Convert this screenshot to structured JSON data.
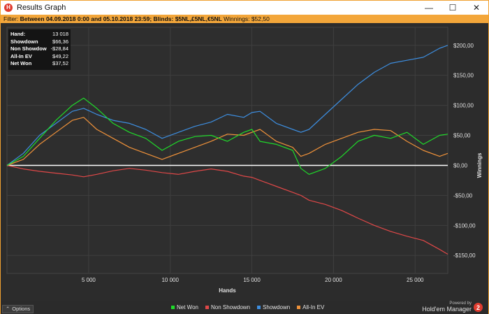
{
  "window": {
    "title": "Results Graph",
    "minimize_glyph": "—",
    "maximize_glyph": "☐",
    "close_glyph": "✕"
  },
  "filter": {
    "prefix": "Filter: ",
    "text": "Between 04.09.2018 0:00 and 05.10.2018 23:59; Blinds: $5NL,£5NL,€5NL",
    "winnings_label": " Winnings: $52,50"
  },
  "stats": [
    {
      "label": "Hand:",
      "value": "13 018"
    },
    {
      "label": "Showdown",
      "value": "$66,36"
    },
    {
      "label": "Non Showdow",
      "value": "-$28,84"
    },
    {
      "label": "All-In EV",
      "value": "$49,22"
    },
    {
      "label": "Net Won",
      "value": "$37,52"
    }
  ],
  "bottom": {
    "options_label": "Options",
    "powered_by": "Powered by",
    "brand": "Hold'em Manager",
    "brand_badge": "2"
  },
  "colors": {
    "net_won": "#1fdc2a",
    "non_showdown": "#e04848",
    "showdown": "#3d8ee0",
    "allin_ev": "#f0923a",
    "accent": "#f3a63a"
  },
  "chart_data": {
    "type": "line",
    "xlabel": "Hands",
    "ylabel": "Winnings",
    "xlim": [
      0,
      27000
    ],
    "ylim": [
      -180,
      230
    ],
    "x_ticks": [
      5000,
      10000,
      15000,
      20000,
      25000
    ],
    "x_tick_labels": [
      "5 000",
      "10 000",
      "15 000",
      "20 000",
      "25 000"
    ],
    "y_ticks": [
      200,
      150,
      100,
      50,
      0,
      -50,
      -100,
      -150
    ],
    "y_tick_labels": [
      "$200,00",
      "$150,00",
      "$100,00",
      "$50,00",
      "$0,00",
      "-$50,00",
      "-$100,00",
      "-$150,00"
    ],
    "grid": true,
    "legend_position": "bottom",
    "x": [
      0,
      1000,
      2000,
      3000,
      4000,
      4700,
      5500,
      6500,
      7500,
      8500,
      9500,
      10500,
      11500,
      12500,
      13500,
      14500,
      15000,
      15500,
      16500,
      17500,
      18000,
      18500,
      19500,
      20500,
      21500,
      22500,
      23500,
      24500,
      25500,
      26500,
      27000
    ],
    "series": [
      {
        "name": "Net Won",
        "color": "#1fdc2a",
        "values": [
          0,
          15,
          45,
          75,
          100,
          112,
          95,
          70,
          55,
          45,
          25,
          40,
          48,
          50,
          40,
          55,
          60,
          40,
          35,
          25,
          -5,
          -15,
          -5,
          15,
          40,
          50,
          45,
          55,
          35,
          50,
          52
        ]
      },
      {
        "name": "Non Showdown",
        "color": "#e04848",
        "values": [
          0,
          -6,
          -10,
          -13,
          -16,
          -19,
          -15,
          -9,
          -5,
          -8,
          -12,
          -15,
          -10,
          -6,
          -10,
          -18,
          -20,
          -25,
          -35,
          -45,
          -50,
          -58,
          -65,
          -75,
          -88,
          -100,
          -110,
          -118,
          -125,
          -140,
          -148
        ]
      },
      {
        "name": "Showdown",
        "color": "#3d8ee0",
        "values": [
          0,
          20,
          50,
          70,
          90,
          95,
          85,
          75,
          70,
          60,
          45,
          55,
          65,
          72,
          85,
          80,
          88,
          90,
          70,
          60,
          55,
          60,
          85,
          110,
          135,
          155,
          170,
          175,
          180,
          195,
          200
        ]
      },
      {
        "name": "All-In EV",
        "color": "#f0923a",
        "values": [
          0,
          10,
          35,
          55,
          75,
          80,
          60,
          45,
          30,
          20,
          10,
          20,
          30,
          40,
          52,
          50,
          55,
          60,
          40,
          30,
          15,
          20,
          35,
          45,
          55,
          60,
          58,
          40,
          25,
          15,
          20
        ]
      }
    ]
  }
}
